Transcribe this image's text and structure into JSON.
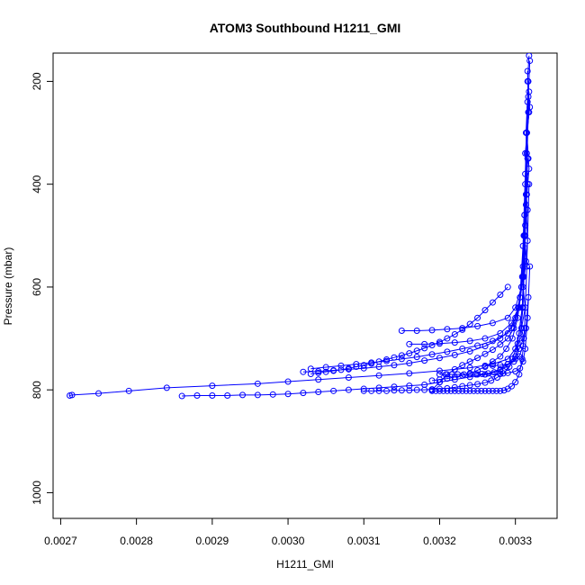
{
  "chart_data": {
    "type": "scatter",
    "title": "ATOM3 Southbound H1211_GMI",
    "xlabel": "H1211_GMI",
    "ylabel": "Pressure (mbar)",
    "xlim": [
      0.00269,
      0.003355
    ],
    "ylim": [
      1050,
      145
    ],
    "y_reversed": true,
    "x_ticks": [
      0.0027,
      0.0028,
      0.0029,
      0.003,
      0.0031,
      0.0032,
      0.0033
    ],
    "x_tick_labels": [
      "0.0027",
      "0.0028",
      "0.0029",
      "0.0030",
      "0.0031",
      "0.0032",
      "0.0033"
    ],
    "y_ticks": [
      200,
      400,
      600,
      800,
      1000
    ],
    "y_tick_labels": [
      "200",
      "400",
      "600",
      "800",
      "1000"
    ],
    "grid": false,
    "marker": "open-circle",
    "line": true,
    "color": "#0000ff",
    "series": [
      {
        "x": [
          0.003318,
          0.003316,
          0.003319,
          0.003315,
          0.003317,
          0.003313,
          0.003316,
          0.003312,
          0.003314,
          0.00331,
          0.003313,
          0.003308,
          0.003311,
          0.003305,
          0.0033,
          0.00329,
          0.00328,
          0.00326,
          0.00324,
          0.00322,
          0.0032,
          0.00318,
          0.00316,
          0.00314,
          0.00312,
          0.0031,
          0.00308,
          0.00306,
          0.00304,
          0.00302,
          0.003,
          0.00298,
          0.00296,
          0.00294,
          0.00292,
          0.0029,
          0.00288,
          0.00286
        ],
        "y": [
          150,
          200,
          250,
          300,
          350,
          400,
          450,
          500,
          550,
          600,
          640,
          680,
          700,
          720,
          740,
          750,
          760,
          770,
          775,
          780,
          785,
          790,
          792,
          794,
          796,
          798,
          800,
          802,
          804,
          806,
          808,
          809,
          810,
          810,
          811,
          811,
          811,
          812
        ]
      },
      {
        "x": [
          0.003319,
          0.003317,
          0.003315,
          0.003318,
          0.003314,
          0.003316,
          0.003311,
          0.003309,
          0.003305,
          0.0033,
          0.00329,
          0.00327,
          0.00324,
          0.0032,
          0.00316,
          0.00312,
          0.00308,
          0.00304,
          0.003,
          0.00296,
          0.0029,
          0.00284,
          0.00279,
          0.00275,
          0.002715,
          0.002712
        ],
        "y": [
          160,
          230,
          300,
          370,
          440,
          510,
          580,
          640,
          690,
          720,
          740,
          750,
          757,
          763,
          768,
          772,
          776,
          780,
          784,
          788,
          792,
          796,
          802,
          807,
          810,
          811
        ]
      },
      {
        "x": [
          0.003316,
          0.003318,
          0.003313,
          0.003315,
          0.003312,
          0.00331,
          0.003305,
          0.003295,
          0.00328,
          0.00326,
          0.00324,
          0.00322,
          0.0032,
          0.00318,
          0.00316,
          0.00314,
          0.00312,
          0.0031,
          0.00308,
          0.00306,
          0.00304,
          0.00302
        ],
        "y": [
          180,
          260,
          340,
          420,
          500,
          580,
          640,
          680,
          700,
          715,
          725,
          732,
          738,
          743,
          748,
          752,
          755,
          758,
          760,
          762,
          764,
          765
        ]
      },
      {
        "x": [
          0.003317,
          0.003314,
          0.003316,
          0.003311,
          0.003308,
          0.0033,
          0.00329,
          0.00327,
          0.00325,
          0.00323,
          0.00321,
          0.00319,
          0.00317,
          0.00315
        ],
        "y": [
          200,
          300,
          400,
          500,
          600,
          640,
          660,
          670,
          676,
          680,
          682,
          684,
          685,
          685
        ]
      },
      {
        "x": [
          0.003318,
          0.003315,
          0.003312,
          0.003309,
          0.003304,
          0.003295,
          0.00328,
          0.00326,
          0.00324,
          0.00322,
          0.0032,
          0.00318,
          0.00316
        ],
        "y": [
          220,
          340,
          460,
          580,
          640,
          670,
          690,
          700,
          705,
          708,
          710,
          711,
          711
        ]
      },
      {
        "x": [
          0.003316,
          0.003313,
          0.00331,
          0.003306,
          0.0033,
          0.00329,
          0.00327,
          0.00325,
          0.00323,
          0.00321,
          0.00319,
          0.00317,
          0.00315,
          0.00313,
          0.00311,
          0.00309,
          0.00307,
          0.00305,
          0.00303
        ],
        "y": [
          240,
          380,
          520,
          620,
          660,
          690,
          705,
          714,
          720,
          726,
          731,
          736,
          740,
          744,
          747,
          750,
          753,
          756,
          759
        ]
      },
      {
        "x": [
          0.003317,
          0.003314,
          0.00331,
          0.003305,
          0.003298,
          0.00329,
          0.00328,
          0.00327,
          0.00326,
          0.00325,
          0.00324,
          0.00323,
          0.00322,
          0.00321,
          0.0032,
          0.00319
        ],
        "y": [
          260,
          420,
          560,
          640,
          680,
          700,
          712,
          722,
          730,
          738,
          745,
          752,
          760,
          770,
          785,
          800
        ]
      },
      {
        "x": [
          0.003315,
          0.003312,
          0.003308,
          0.003303,
          0.003296,
          0.003288,
          0.00328,
          0.00327,
          0.00326,
          0.00325,
          0.00324,
          0.00323,
          0.00322,
          0.00321,
          0.0032,
          0.00319
        ],
        "y": [
          300,
          460,
          600,
          660,
          700,
          720,
          735,
          745,
          755,
          762,
          768,
          772,
          775,
          778,
          780,
          782
        ]
      },
      {
        "x": [
          0.003316,
          0.003313,
          0.00331,
          0.003306,
          0.0033,
          0.003292,
          0.003284,
          0.003276,
          0.003268,
          0.00326,
          0.00325,
          0.00324,
          0.00323,
          0.00322,
          0.00321,
          0.0032,
          0.00319,
          0.00318,
          0.00317,
          0.00316,
          0.00315,
          0.00314,
          0.00313,
          0.00312,
          0.00311,
          0.0031
        ],
        "y": [
          350,
          500,
          640,
          700,
          735,
          755,
          768,
          776,
          782,
          786,
          789,
          791,
          793,
          795,
          797,
          798,
          799,
          800,
          800,
          801,
          801,
          801,
          802,
          802,
          802,
          802
        ]
      },
      {
        "x": [
          0.003318,
          0.003315,
          0.003312,
          0.003309,
          0.003305,
          0.0033,
          0.003295,
          0.00329,
          0.003285,
          0.00328,
          0.003275,
          0.00327,
          0.003265,
          0.00326,
          0.003255,
          0.00325,
          0.003245,
          0.00324,
          0.003235,
          0.00323,
          0.003225,
          0.00322,
          0.003215,
          0.00321,
          0.003205,
          0.0032,
          0.003195,
          0.00319
        ],
        "y": [
          400,
          560,
          680,
          740,
          770,
          785,
          793,
          798,
          801,
          802,
          802,
          802,
          802,
          802,
          802,
          802,
          802,
          802,
          802,
          802,
          802,
          802,
          802,
          802,
          802,
          802,
          802,
          802
        ]
      },
      {
        "x": [
          0.003313,
          0.003309,
          0.003303,
          0.003296,
          0.003288,
          0.00328,
          0.003272,
          0.003264,
          0.003256,
          0.003248,
          0.00324,
          0.003232,
          0.003224,
          0.003216,
          0.003208,
          0.0032
        ],
        "y": [
          480,
          640,
          710,
          740,
          755,
          762,
          766,
          768,
          769,
          770,
          770,
          770,
          770,
          770,
          770,
          770
        ]
      },
      {
        "x": [
          0.003319,
          0.003316,
          0.003313,
          0.00331,
          0.003306,
          0.0033,
          0.00329,
          0.00328,
          0.00327,
          0.00326,
          0.00325
        ],
        "y": [
          560,
          660,
          720,
          745,
          758,
          764,
          767,
          769,
          770,
          770,
          770
        ]
      },
      {
        "x": [
          0.003317,
          0.003314,
          0.00331,
          0.003305,
          0.003298,
          0.00329,
          0.00328,
          0.00327,
          0.00326
        ],
        "y": [
          620,
          680,
          715,
          735,
          745,
          750,
          752,
          753,
          753
        ]
      },
      {
        "x": [
          0.00329,
          0.00328,
          0.00327,
          0.00326,
          0.00325,
          0.00324,
          0.00323,
          0.00322,
          0.00321,
          0.0032,
          0.00319,
          0.00318,
          0.00317,
          0.00316,
          0.00315,
          0.00314,
          0.00313,
          0.00312,
          0.00311,
          0.0031,
          0.00309,
          0.00308,
          0.00307,
          0.00306,
          0.00305,
          0.00304,
          0.00303
        ],
        "y": [
          600,
          615,
          630,
          645,
          660,
          672,
          683,
          692,
          700,
          707,
          713,
          719,
          724,
          729,
          733,
          737,
          741,
          745,
          749,
          752,
          755,
          758,
          761,
          763,
          765,
          767,
          769
        ]
      }
    ]
  }
}
